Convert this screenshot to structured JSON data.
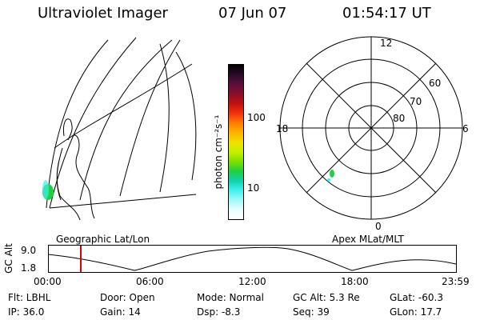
{
  "header": {
    "title": "Ultraviolet Imager",
    "date": "07 Jun 07",
    "time": "01:54:17 UT"
  },
  "colorbar": {
    "unit_label": "photon cm⁻²s⁻¹",
    "ticks": [
      "100",
      "10"
    ],
    "colors": [
      "#000000",
      "#2a0a2a",
      "#5b0f3a",
      "#8a0f2a",
      "#c01010",
      "#f03010",
      "#ff7a00",
      "#ffb000",
      "#f0e000",
      "#c8f000",
      "#7fe000",
      "#20d040",
      "#10d0b0",
      "#40f0f0",
      "#a0f8f8",
      "#e8ffff",
      "#ffffff"
    ]
  },
  "geo_panel": {
    "label": "Geographic Lat/Lon"
  },
  "polar_panel": {
    "label": "Apex MLat/MLT",
    "mlt_labels": {
      "top": "12",
      "left": "18",
      "right": "6",
      "bottom": "0"
    },
    "lat_labels": [
      "60",
      "70",
      "80"
    ]
  },
  "timeline": {
    "y_axis_label": "GC Alt",
    "y_ticks": [
      "9.0",
      "1.8"
    ],
    "x_ticks": [
      "00:00",
      "06:00",
      "12:00",
      "18:00",
      "23:59"
    ],
    "marker_color": "#dd0000"
  },
  "status": {
    "flt": "Flt: LBHL",
    "ip": "IP: 36.0",
    "door": "Door: Open",
    "gain": "Gain: 14",
    "mode": "Mode: Normal",
    "dsp": "Dsp:   -8.3",
    "gc_alt": "GC Alt: 5.3 Re",
    "seq": "Seq: 39",
    "glat": "GLat: -60.3",
    "glon": "GLon:  17.7"
  }
}
